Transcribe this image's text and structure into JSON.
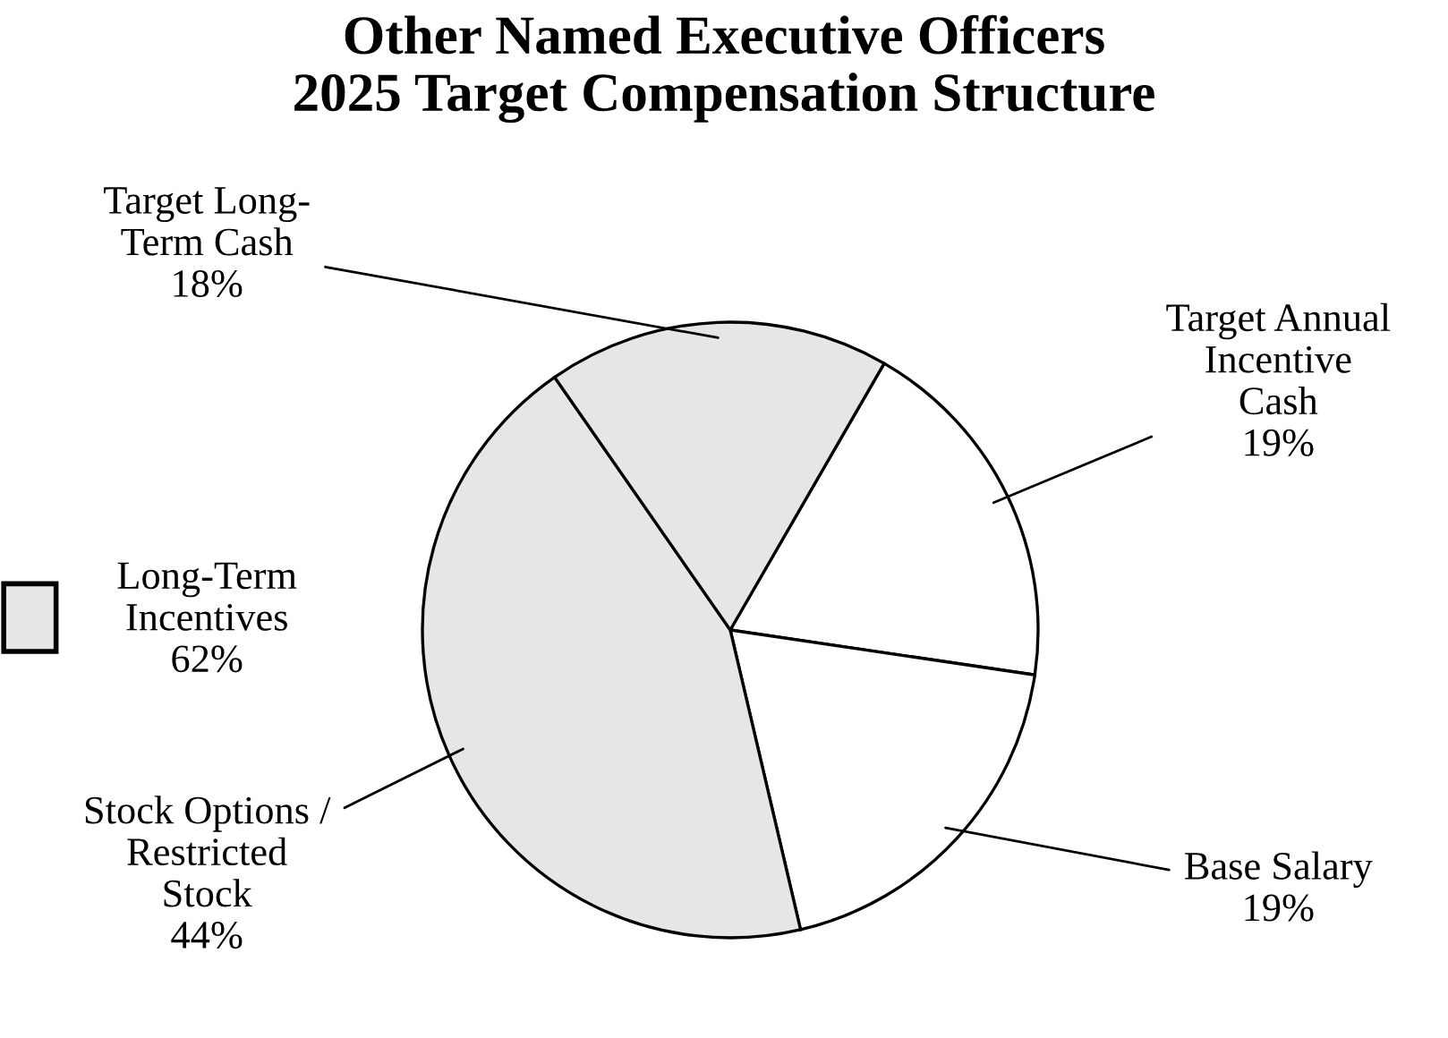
{
  "chart_data": {
    "type": "pie",
    "title": "Other Named Executive Officers\n2025 Target Compensation Structure",
    "categories": [
      "Target Annual\nIncentive\nCash",
      "Base Salary",
      "Stock Options /\nRestricted\nStock",
      "Target Long-\nTerm Cash"
    ],
    "values": [
      19,
      19,
      44,
      18
    ],
    "value_labels": [
      "19%",
      "19%",
      "44%",
      "18%"
    ],
    "colors": [
      "#ffffff",
      "#ffffff",
      "#e6e6e6",
      "#e6e6e6"
    ],
    "annotations": [
      "Long-Term\nIncentives\n62%"
    ]
  }
}
